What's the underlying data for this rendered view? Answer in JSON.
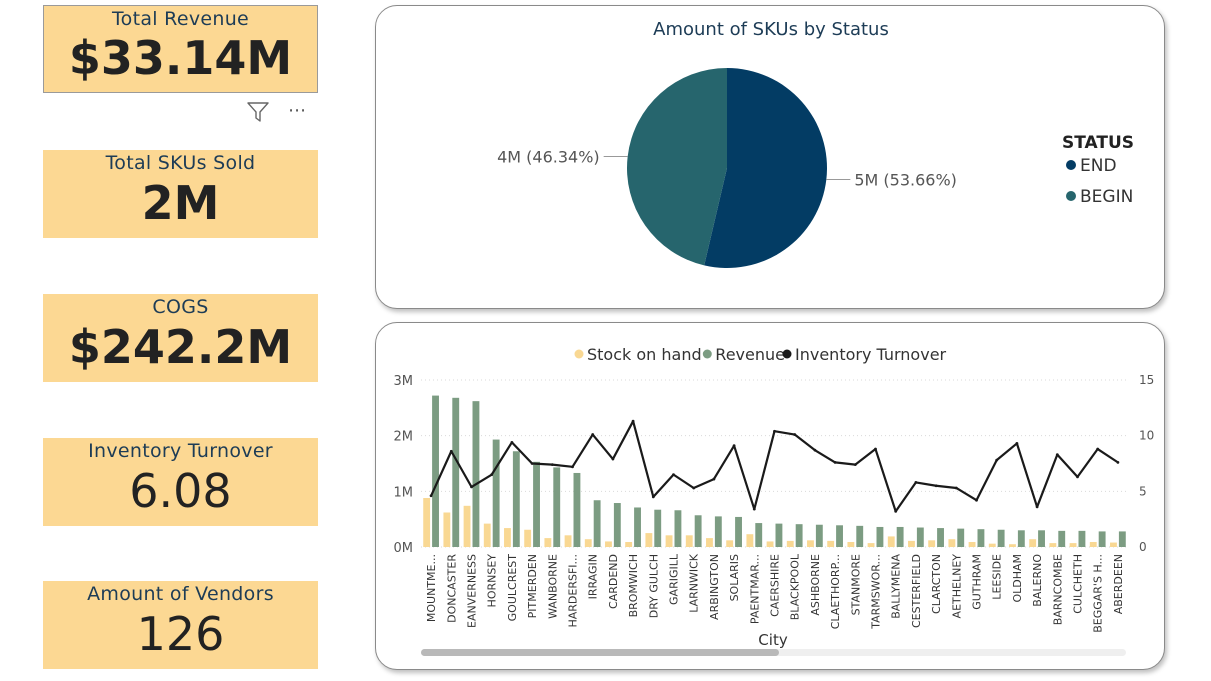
{
  "kpis": [
    {
      "label": "Total Revenue",
      "value": "$33.14M"
    },
    {
      "label": "Total SKUs Sold",
      "value": "2M"
    },
    {
      "label": "COGS",
      "value": "$242.2M"
    },
    {
      "label": "Inventory Turnover",
      "value": "6.08"
    },
    {
      "label": "Amount of Vendors",
      "value": "126"
    }
  ],
  "colors": {
    "kpi_bg": "#fcd893",
    "end": "#033c64",
    "begin": "#26656d",
    "stock": "#f9d893",
    "revenue": "#7c9c82",
    "turnover": "#1a1a1a"
  },
  "chart_data": [
    {
      "type": "pie",
      "title": "Amount of SKUs by Status",
      "legend_title": "STATUS",
      "legend_position": "right",
      "slices": [
        {
          "name": "END",
          "value": 5,
          "percent": 53.66,
          "label": "5M (53.66%)"
        },
        {
          "name": "BEGIN",
          "value": 4,
          "percent": 46.34,
          "label": "4M (46.34%)"
        }
      ]
    },
    {
      "type": "bar",
      "subtype": "clustered-column-line",
      "legend_position": "top",
      "xlabel": "City",
      "y_left_ticks": [
        "0M",
        "1M",
        "2M",
        "3M"
      ],
      "y_left_lim": [
        0,
        3000000
      ],
      "y_right_ticks": [
        "0",
        "5",
        "10",
        "15"
      ],
      "y_right_lim": [
        0,
        15
      ],
      "categories": [
        "MOUNTME...",
        "DONCASTER",
        "EANVERNESS",
        "HORNSEY",
        "GOULCREST",
        "PITMERDEN",
        "WANBORNE",
        "HARDERSFI...",
        "IRRAGIN",
        "CARDEND",
        "BROMWICH",
        "DRY GULCH",
        "GARIGILL",
        "LARNWICK",
        "ARBINGTON",
        "SOLARIS",
        "PAENTMAR...",
        "CAERSHIRE",
        "BLACKPOOL",
        "ASHBORNE",
        "CLAETHORP...",
        "STANMORE",
        "TARMSWOR...",
        "BALLYMENA",
        "CESTERFIELD",
        "CLARCTON",
        "AETHELNEY",
        "GUTHRAM",
        "LEESIDE",
        "OLDHAM",
        "BALERNO",
        "BARNCOMBE",
        "CULCHETH",
        "BEGGAR'S H...",
        "ABERDEEN"
      ],
      "series": [
        {
          "name": "Stock on hand",
          "axis": "left",
          "kind": "bar",
          "values": [
            880000,
            620000,
            740000,
            420000,
            340000,
            310000,
            160000,
            210000,
            140000,
            100000,
            90000,
            250000,
            210000,
            210000,
            160000,
            120000,
            230000,
            100000,
            110000,
            120000,
            110000,
            90000,
            70000,
            190000,
            110000,
            120000,
            140000,
            90000,
            60000,
            50000,
            140000,
            70000,
            70000,
            90000,
            80000
          ]
        },
        {
          "name": "Revenue",
          "axis": "left",
          "kind": "bar",
          "values": [
            2720000,
            2680000,
            2620000,
            1930000,
            1720000,
            1530000,
            1430000,
            1330000,
            840000,
            790000,
            710000,
            670000,
            660000,
            570000,
            550000,
            540000,
            430000,
            420000,
            410000,
            400000,
            390000,
            380000,
            360000,
            360000,
            350000,
            340000,
            330000,
            320000,
            310000,
            300000,
            300000,
            290000,
            290000,
            280000,
            280000
          ]
        },
        {
          "name": "Inventory Turnover",
          "axis": "right",
          "kind": "line",
          "values": [
            4.6,
            8.6,
            5.4,
            6.5,
            9.4,
            7.5,
            7.4,
            7.2,
            10.1,
            7.9,
            11.3,
            4.5,
            6.5,
            5.3,
            6.1,
            9.1,
            3.4,
            10.4,
            10.1,
            8.7,
            7.6,
            7.4,
            8.8,
            3.2,
            5.8,
            5.5,
            5.3,
            4.2,
            7.8,
            9.3,
            3.6,
            8.3,
            6.3,
            8.8,
            7.6
          ]
        }
      ]
    }
  ]
}
